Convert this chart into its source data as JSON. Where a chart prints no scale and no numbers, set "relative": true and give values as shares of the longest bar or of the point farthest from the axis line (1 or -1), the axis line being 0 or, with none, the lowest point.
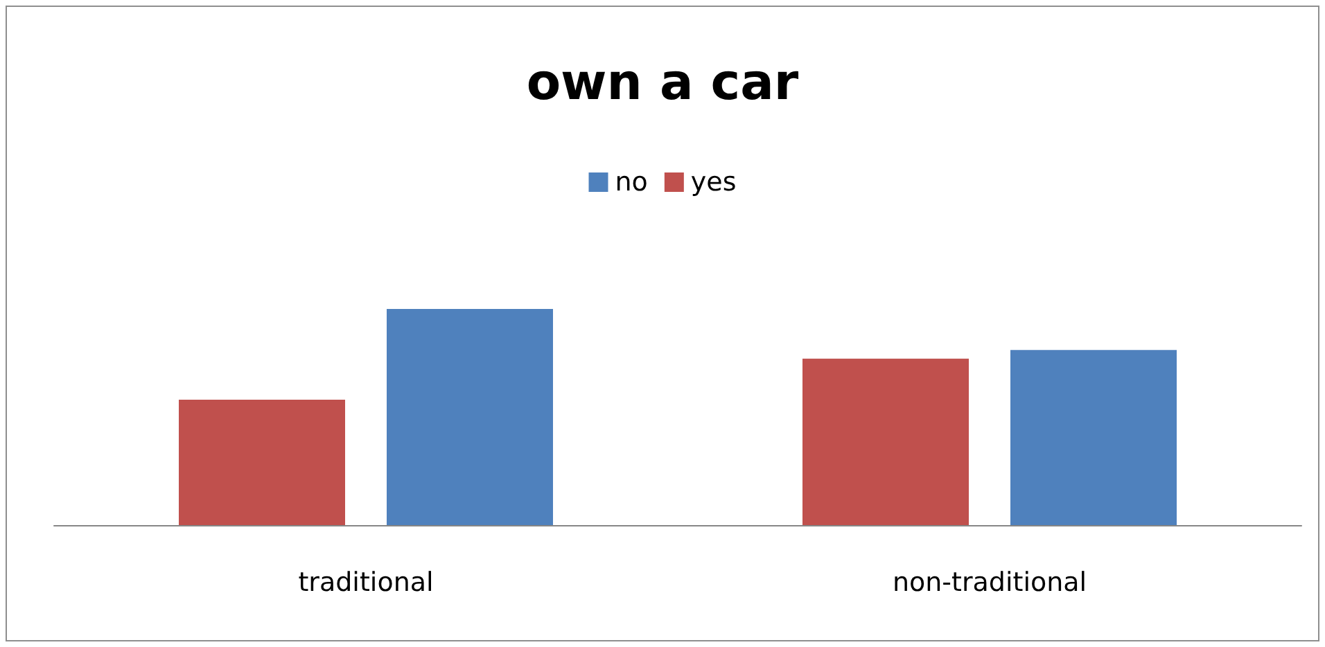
{
  "chart_data": {
    "type": "bar",
    "title": "own a car",
    "relative": true,
    "categories": [
      "traditional",
      "non-traditional"
    ],
    "series": [
      {
        "name": "yes",
        "color": "#c0504d",
        "values": [
          0.58,
          0.77
        ]
      },
      {
        "name": "no",
        "color": "#4f81bd",
        "values": [
          1,
          0.81
        ]
      }
    ],
    "legend": "top",
    "grid": false
  }
}
